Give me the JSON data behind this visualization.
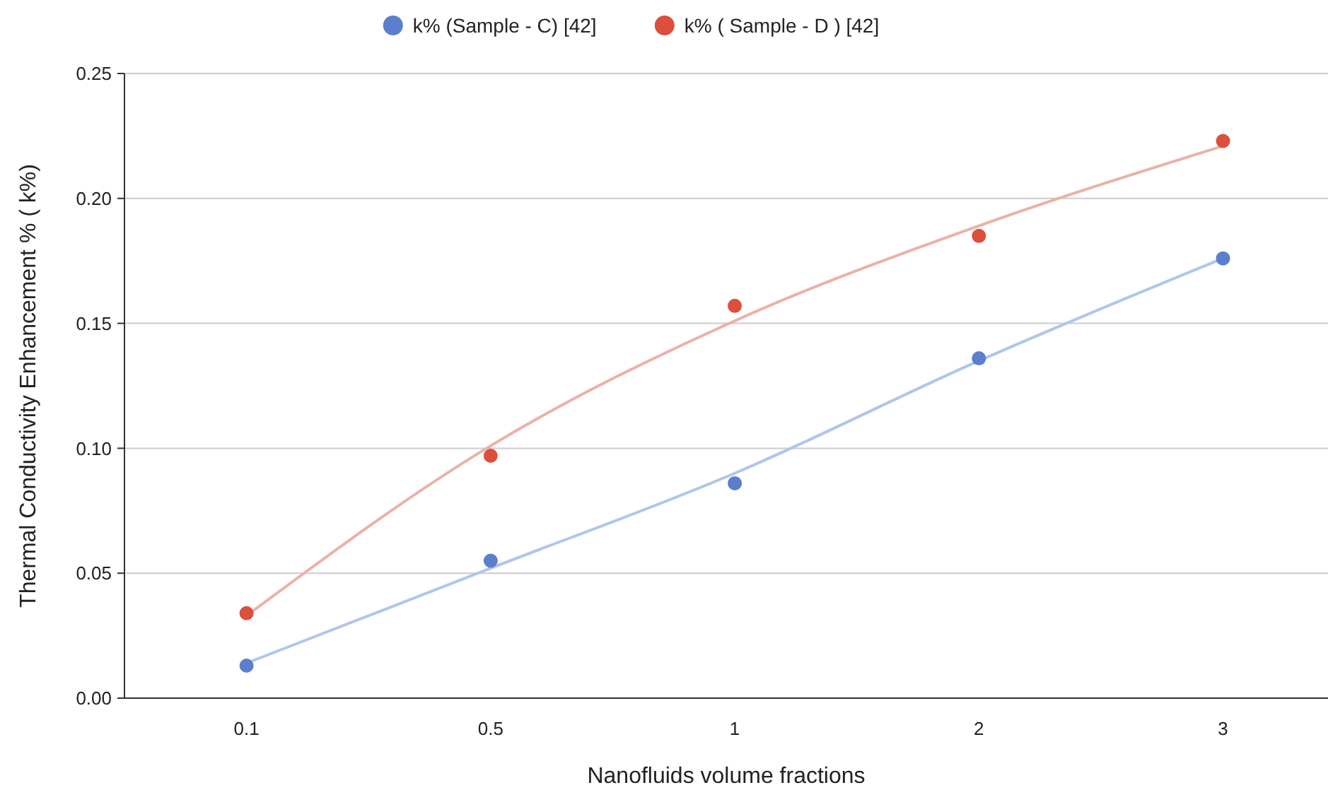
{
  "chart_data": {
    "type": "scatter",
    "xlabel": "Nanofluids volume fractions",
    "ylabel": "Thermal Conductivity Enhancement % ( k%)",
    "categories": [
      "0.1",
      "0.5",
      "1",
      "2",
      "3"
    ],
    "series": [
      {
        "name": "k% (Sample - C) [42]",
        "color": "#5b7fcc",
        "values": [
          0.013,
          0.055,
          0.086,
          0.136,
          0.176
        ]
      },
      {
        "name": "k% ( Sample - D ) [42]",
        "color": "#dd4f3d",
        "values": [
          0.034,
          0.097,
          0.157,
          0.185,
          0.223
        ]
      },
      {
        "type": "line",
        "marker": "none",
        "color": "#b0c6ea",
        "values": [
          0.014,
          0.052,
          0.09,
          0.135,
          0.176
        ]
      },
      {
        "type": "line",
        "marker": "none",
        "color": "#ebb1a8",
        "values": [
          0.033,
          0.101,
          0.151,
          0.189,
          0.221
        ]
      }
    ],
    "ylim": [
      0,
      0.25
    ],
    "yticks": [
      {
        "value": 0,
        "label": "0.00"
      },
      {
        "value": 0.05,
        "label": "0.05"
      },
      {
        "value": 0.1,
        "label": "0.10"
      },
      {
        "value": 0.15,
        "label": "0.15"
      },
      {
        "value": 0.2,
        "label": "0.20"
      },
      {
        "value": 0.25,
        "label": "0.25"
      }
    ],
    "grid": "y",
    "legend": "top",
    "marker": "circle"
  }
}
